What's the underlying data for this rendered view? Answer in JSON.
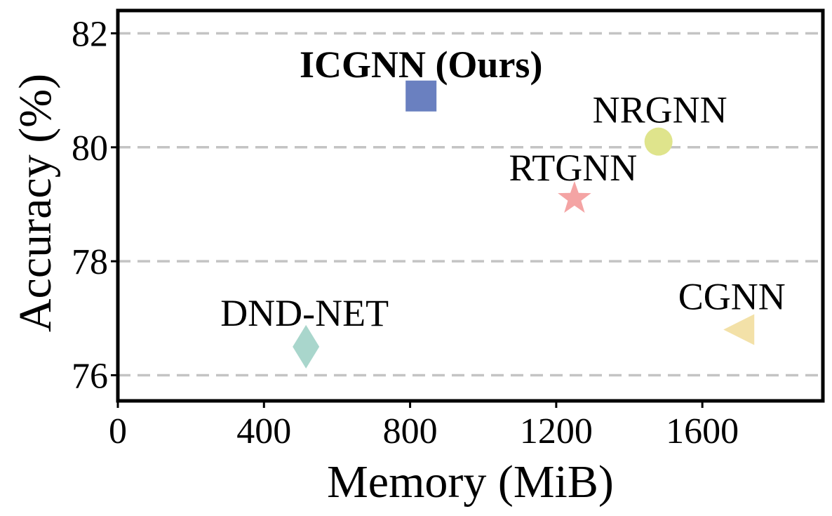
{
  "chart_data": {
    "type": "scatter",
    "title": "",
    "xlabel": "Memory (MiB)",
    "ylabel": "Accuracy (%)",
    "xlim": [
      0,
      1930
    ],
    "ylim": [
      75.55,
      82.4
    ],
    "xticks": [
      0,
      400,
      800,
      1200,
      1600
    ],
    "yticks": [
      76,
      78,
      80,
      82
    ],
    "grid": "horizontal-dashed",
    "points": [
      {
        "label": "ICGNN (Ours)",
        "x": 830,
        "y": 80.9,
        "marker": "square",
        "color": "#6a80c0",
        "bold": true
      },
      {
        "label": "NRGNN",
        "x": 1480,
        "y": 80.1,
        "marker": "circle",
        "color": "#dfe48c",
        "bold": false
      },
      {
        "label": "RTGNN",
        "x": 1250,
        "y": 79.1,
        "marker": "star",
        "color": "#f4a4a4",
        "bold": false
      },
      {
        "label": "CGNN",
        "x": 1700,
        "y": 76.8,
        "marker": "triangle-left",
        "color": "#f3e1a8",
        "bold": false
      },
      {
        "label": "DND-NET",
        "x": 515,
        "y": 76.5,
        "marker": "diamond",
        "color": "#a9d6cc",
        "bold": false
      }
    ]
  }
}
